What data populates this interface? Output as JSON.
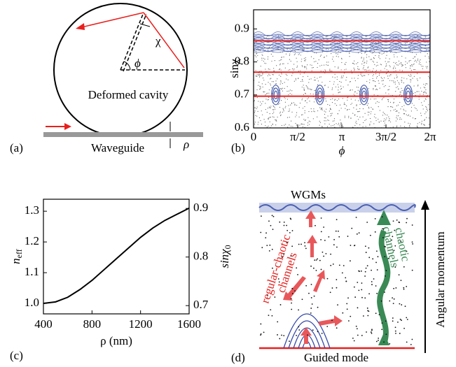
{
  "diagram_a": {
    "panel_label": "(a)",
    "chi": "χ",
    "phi": "ϕ",
    "cavity": "Deformed cavity",
    "waveguide": "Waveguide",
    "rho": "ρ"
  },
  "chart_data": [
    {
      "type": "phase",
      "panel_label": "(b)",
      "xlabel": "ϕ",
      "ylabel": "sinχ",
      "xlim": [
        0,
        6.2832
      ],
      "xticks": [
        0,
        {
          "value": 1.5708,
          "label": "π/2"
        },
        {
          "value": 3.1416,
          "label": "π"
        },
        {
          "value": 4.7124,
          "label": "3π/2"
        },
        {
          "value": 6.2832,
          "label": "2π"
        }
      ],
      "ylim": [
        0.6,
        0.958
      ],
      "yticks": [
        0.6,
        0.7,
        0.8,
        0.9
      ],
      "hlines": [
        0.696,
        0.769,
        0.864
      ],
      "hline_color": "#e8201e",
      "islands": {
        "x": [
          0.79,
          2.36,
          3.93,
          5.5
        ],
        "y": [
          0.7,
          0.7,
          0.7,
          0.7
        ]
      },
      "color": "#4a5fb0"
    },
    {
      "type": "line",
      "panel_label": "(c)",
      "xlabel": "ρ (nm)",
      "ylabel": {
        "base": "n",
        "sub": "eff"
      },
      "y2label": {
        "base": "sinχ",
        "sub": "0"
      },
      "x": [
        400,
        500,
        600,
        700,
        800,
        900,
        1000,
        1100,
        1200,
        1300,
        1400,
        1500,
        1600
      ],
      "values": [
        1.0,
        1.005,
        1.02,
        1.045,
        1.075,
        1.11,
        1.145,
        1.18,
        1.215,
        1.245,
        1.27,
        1.29,
        1.31
      ],
      "color": "#000000",
      "xlim": [
        400,
        1600
      ],
      "xticks": [
        400,
        800,
        1200,
        1600
      ],
      "ylim": [
        0.966,
        1.339
      ],
      "yticks": [
        {
          "value": 1,
          "label": "1.0"
        },
        1.1,
        1.2,
        1.3
      ],
      "y2lim": [
        0.683,
        0.919
      ],
      "y2ticks": [
        0.7,
        0.8,
        0.9
      ]
    }
  ],
  "diagram_d": {
    "panel_label": "(d)",
    "top": "WGMs",
    "bottom": "Guided mode",
    "axis": "Angular momentum",
    "regular_chaotic": [
      "regular-chaotic",
      "channels"
    ],
    "chaotic": [
      "chaotic",
      "channels"
    ]
  }
}
